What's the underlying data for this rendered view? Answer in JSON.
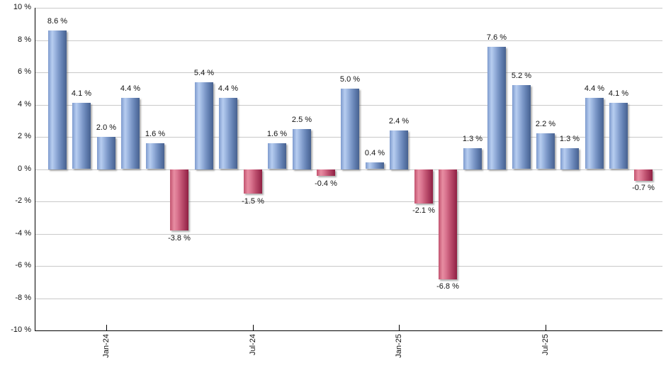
{
  "chart_data": {
    "type": "bar",
    "title": "",
    "unit": "%",
    "values": [
      8.6,
      4.1,
      2.0,
      4.4,
      1.6,
      -3.8,
      5.4,
      4.4,
      -1.5,
      1.6,
      2.5,
      -0.4,
      5.0,
      0.4,
      2.4,
      -2.1,
      -6.8,
      1.3,
      7.6,
      5.2,
      2.2,
      1.3,
      4.4,
      4.1,
      -0.7
    ],
    "data_label_format": "{v} %",
    "x_axis": {
      "tick_labels": [
        {
          "label": "Jan-24",
          "bar_index": 2
        },
        {
          "label": "Jul-24",
          "bar_index": 8
        },
        {
          "label": "Jan-25",
          "bar_index": 14
        },
        {
          "label": "Jul-25",
          "bar_index": 20
        }
      ]
    },
    "y_axis": {
      "min": -10,
      "max": 10,
      "step": 2,
      "tick_label_format": "{v} %"
    },
    "legend": "none",
    "grid": "horizontal"
  },
  "style": {
    "background": "#ffffff",
    "positive_bar_colors": [
      "#7e9bce",
      "#b7cdf0",
      "#47618f"
    ],
    "negative_bar_colors": [
      "#c2536f",
      "#e78da2",
      "#8f2042"
    ],
    "gridline_color": "#c9c9c9",
    "axis_color": "#000000",
    "text_color": "#111111"
  }
}
